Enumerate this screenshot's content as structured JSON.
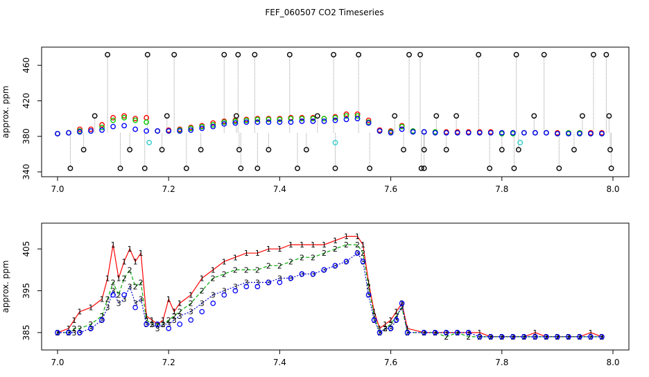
{
  "title": "FEF_060507  CO2 Timeseries",
  "chart_data": [
    {
      "type": "scatter",
      "ylabel": "approx. ppm",
      "xlim": [
        7.0,
        8.0
      ],
      "ylim": [
        340,
        475
      ],
      "xticks": [
        7.0,
        7.2,
        7.4,
        7.6,
        7.8,
        8.0
      ],
      "xtick_labels": [
        "7.0",
        "7.2",
        "7.4",
        "7.6",
        "7.8",
        "8.0"
      ],
      "yticks": [
        340,
        380,
        420,
        460
      ],
      "ytick_labels": [
        "340",
        "380",
        "420",
        "460"
      ],
      "grid": false,
      "series": [
        {
          "color": "#ff0000",
          "marker": "circle",
          "x": [
            7.0,
            7.02,
            7.04,
            7.06,
            7.08,
            7.1,
            7.12,
            7.14,
            7.16,
            7.18,
            7.2,
            7.22,
            7.24,
            7.26,
            7.28,
            7.3,
            7.32,
            7.34,
            7.36,
            7.38,
            7.4,
            7.42,
            7.44,
            7.46,
            7.48,
            7.5,
            7.52,
            7.54,
            7.56,
            7.58,
            7.6,
            7.62,
            7.64,
            7.66,
            7.68,
            7.7,
            7.72,
            7.74,
            7.76,
            7.78,
            7.8,
            7.82,
            7.84,
            7.86,
            7.88,
            7.9,
            7.92,
            7.94,
            7.96,
            7.98
          ],
          "y": [
            383,
            384,
            388,
            388,
            393,
            401,
            403,
            400,
            401,
            386,
            387,
            388,
            390,
            392,
            395,
            397,
            398,
            399,
            400,
            400,
            400,
            401,
            401,
            401,
            400,
            402,
            405,
            405,
            398,
            387,
            386,
            392,
            386,
            385,
            385,
            385,
            385,
            385,
            385,
            385,
            384,
            384,
            384,
            384,
            384,
            384,
            384,
            384,
            384,
            384
          ]
        },
        {
          "color": "#00cc00",
          "marker": "circle",
          "x": [
            7.0,
            7.02,
            7.04,
            7.06,
            7.08,
            7.1,
            7.12,
            7.14,
            7.16,
            7.18,
            7.2,
            7.22,
            7.24,
            7.26,
            7.28,
            7.3,
            7.32,
            7.34,
            7.36,
            7.38,
            7.4,
            7.42,
            7.44,
            7.46,
            7.48,
            7.5,
            7.52,
            7.54,
            7.56,
            7.58,
            7.6,
            7.62,
            7.64,
            7.66,
            7.68,
            7.7,
            7.72,
            7.74,
            7.76,
            7.78,
            7.8,
            7.82,
            7.84,
            7.86,
            7.88,
            7.9,
            7.92,
            7.94,
            7.96,
            7.98
          ],
          "y": [
            383,
            384,
            386,
            386,
            390,
            398,
            401,
            398,
            396,
            386,
            386,
            387,
            389,
            391,
            393,
            396,
            397,
            398,
            399,
            399,
            399,
            400,
            400,
            400,
            400,
            401,
            403,
            403,
            396,
            386,
            385,
            391,
            386,
            385,
            385,
            384,
            384,
            384,
            384,
            384,
            383,
            383,
            384,
            384,
            384,
            383,
            384,
            384,
            383,
            383
          ]
        },
        {
          "color": "#0000ff",
          "marker": "circle",
          "x": [
            7.0,
            7.02,
            7.04,
            7.06,
            7.08,
            7.1,
            7.12,
            7.14,
            7.16,
            7.18,
            7.2,
            7.22,
            7.24,
            7.26,
            7.28,
            7.3,
            7.32,
            7.34,
            7.36,
            7.38,
            7.4,
            7.42,
            7.44,
            7.46,
            7.48,
            7.5,
            7.52,
            7.54,
            7.56,
            7.58,
            7.6,
            7.62,
            7.64,
            7.66,
            7.68,
            7.7,
            7.72,
            7.74,
            7.76,
            7.78,
            7.8,
            7.82,
            7.84,
            7.86,
            7.88,
            7.9,
            7.92,
            7.94,
            7.96,
            7.98
          ],
          "y": [
            383,
            384,
            385,
            386,
            387,
            391,
            392,
            388,
            386,
            386,
            386,
            386,
            387,
            389,
            391,
            394,
            395,
            396,
            396,
            396,
            396,
            396,
            397,
            397,
            397,
            398,
            399,
            400,
            395,
            386,
            384,
            388,
            385,
            385,
            384,
            384,
            384,
            384,
            384,
            384,
            384,
            384,
            384,
            384,
            384,
            383,
            383,
            383,
            383,
            383
          ]
        },
        {
          "color": "#000000",
          "marker": "circle",
          "x": [
            7.023,
            7.047,
            7.067,
            7.09,
            7.113,
            7.13,
            7.157,
            7.162,
            7.188,
            7.197,
            7.21,
            7.232,
            7.258,
            7.3,
            7.322,
            7.325,
            7.327,
            7.33,
            7.355,
            7.36,
            7.38,
            7.418,
            7.432,
            7.448,
            7.468,
            7.497,
            7.5,
            7.542,
            7.562,
            7.607,
            7.623,
            7.633,
            7.653,
            7.655,
            7.66,
            7.66,
            7.682,
            7.7,
            7.718,
            7.758,
            7.778,
            7.8,
            7.822,
            7.826,
            7.83,
            7.858,
            7.876,
            7.903,
            7.93,
            7.945,
            7.965,
            7.988,
            7.993,
            7.995,
            7.997
          ],
          "y": [
            344,
            365,
            403,
            472,
            344,
            365,
            344,
            472,
            365,
            403,
            472,
            344,
            365,
            472,
            403,
            472,
            365,
            344,
            472,
            344,
            365,
            472,
            344,
            365,
            403,
            472,
            344,
            472,
            344,
            403,
            365,
            472,
            472,
            344,
            365,
            344,
            403,
            365,
            403,
            472,
            344,
            365,
            344,
            472,
            365,
            403,
            472,
            344,
            365,
            403,
            472,
            472,
            403,
            365,
            344
          ]
        },
        {
          "color": "#33cccc",
          "marker": "circle",
          "x": [
            7.165,
            7.5,
            7.833
          ],
          "y": [
            373,
            373,
            373
          ]
        }
      ]
    },
    {
      "type": "line",
      "ylabel": "approx. ppm",
      "xlim": [
        7.0,
        8.0
      ],
      "ylim": [
        382,
        410
      ],
      "xticks": [
        7.0,
        7.2,
        7.4,
        7.6,
        7.8,
        8.0
      ],
      "xtick_labels": [
        "7.0",
        "7.2",
        "7.4",
        "7.6",
        "7.8",
        "8.0"
      ],
      "yticks": [
        385,
        395,
        405
      ],
      "ytick_labels": [
        "385",
        "395",
        "405"
      ],
      "grid": false,
      "series": [
        {
          "marker_text": "1",
          "color": "#ff0000",
          "x": [
            7.0,
            7.02,
            7.03,
            7.04,
            7.06,
            7.08,
            7.09,
            7.1,
            7.11,
            7.12,
            7.13,
            7.14,
            7.15,
            7.16,
            7.17,
            7.18,
            7.19,
            7.2,
            7.21,
            7.22,
            7.24,
            7.26,
            7.28,
            7.3,
            7.32,
            7.34,
            7.36,
            7.38,
            7.4,
            7.42,
            7.44,
            7.46,
            7.48,
            7.5,
            7.52,
            7.54,
            7.55,
            7.56,
            7.57,
            7.58,
            7.59,
            7.6,
            7.61,
            7.62,
            7.63,
            7.66,
            7.68,
            7.7,
            7.72,
            7.74,
            7.76,
            7.78,
            7.8,
            7.82,
            7.84,
            7.86,
            7.88,
            7.9,
            7.92,
            7.94,
            7.96,
            7.98
          ],
          "y": [
            385,
            386,
            388,
            390,
            391,
            393,
            398,
            406,
            398,
            402,
            405,
            402,
            404,
            389,
            388,
            387,
            388,
            393,
            390,
            392,
            394,
            398,
            400,
            402,
            403,
            404,
            404,
            405,
            405,
            406,
            406,
            406,
            406,
            407,
            408,
            408,
            406,
            397,
            390,
            386,
            387,
            388,
            390,
            392,
            386,
            385,
            385,
            385,
            385,
            385,
            385,
            384,
            384,
            384,
            384,
            385,
            384,
            384,
            384,
            384,
            385,
            384
          ]
        },
        {
          "marker_text": "2",
          "color": "#00aa00",
          "x": [
            7.0,
            7.02,
            7.03,
            7.04,
            7.06,
            7.08,
            7.09,
            7.1,
            7.11,
            7.12,
            7.13,
            7.14,
            7.15,
            7.16,
            7.17,
            7.18,
            7.19,
            7.2,
            7.21,
            7.22,
            7.24,
            7.26,
            7.28,
            7.3,
            7.32,
            7.34,
            7.36,
            7.38,
            7.4,
            7.42,
            7.44,
            7.46,
            7.48,
            7.5,
            7.52,
            7.54,
            7.55,
            7.56,
            7.57,
            7.58,
            7.59,
            7.6,
            7.61,
            7.62,
            7.63,
            7.66,
            7.68,
            7.7,
            7.72,
            7.74,
            7.76,
            7.78,
            7.8,
            7.82,
            7.84,
            7.86,
            7.88,
            7.9,
            7.92,
            7.94,
            7.96,
            7.98
          ],
          "y": [
            385,
            385,
            386,
            386,
            387,
            389,
            393,
            397,
            394,
            398,
            400,
            396,
            397,
            388,
            387,
            387,
            387,
            388,
            389,
            390,
            392,
            395,
            398,
            399,
            400,
            400,
            400,
            401,
            401,
            402,
            403,
            403,
            404,
            405,
            406,
            406,
            404,
            396,
            389,
            385,
            386,
            387,
            389,
            391,
            385,
            385,
            385,
            384,
            385,
            384,
            384,
            384,
            384,
            384,
            384,
            384,
            384,
            384,
            384,
            384,
            384,
            384
          ]
        },
        {
          "marker_text": "3",
          "color": "#0000cc",
          "x": [
            7.0,
            7.02,
            7.03,
            7.04,
            7.06,
            7.08,
            7.09,
            7.1,
            7.11,
            7.12,
            7.13,
            7.14,
            7.15,
            7.16,
            7.17,
            7.18,
            7.19,
            7.2,
            7.21,
            7.22,
            7.24,
            7.26,
            7.28,
            7.3,
            7.32,
            7.34,
            7.36,
            7.38,
            7.4,
            7.42,
            7.44,
            7.46,
            7.48,
            7.5,
            7.52,
            7.54,
            7.55,
            7.56,
            7.57,
            7.58,
            7.59,
            7.6,
            7.61,
            7.62,
            7.63,
            7.66,
            7.68,
            7.7,
            7.72,
            7.74,
            7.76,
            7.78,
            7.8,
            7.82,
            7.84,
            7.86,
            7.88,
            7.9,
            7.92,
            7.94,
            7.96,
            7.98
          ],
          "y": [
            385,
            385,
            385,
            385,
            386,
            388,
            391,
            395,
            392,
            393,
            396,
            392,
            393,
            387,
            387,
            386,
            387,
            387,
            388,
            389,
            390,
            392,
            394,
            395,
            396,
            397,
            397,
            397,
            398,
            398,
            399,
            399,
            400,
            401,
            402,
            404,
            402,
            394,
            388,
            385,
            386,
            386,
            388,
            392,
            385,
            385,
            385,
            385,
            385,
            385,
            384,
            384,
            384,
            384,
            384,
            384,
            384,
            384,
            384,
            384,
            384,
            384
          ]
        },
        {
          "marker_text": "0",
          "color": "#0000ff",
          "x": [
            7.0,
            7.02,
            7.04,
            7.06,
            7.08,
            7.1,
            7.12,
            7.14,
            7.16,
            7.18,
            7.2,
            7.22,
            7.24,
            7.26,
            7.28,
            7.3,
            7.32,
            7.34,
            7.36,
            7.38,
            7.4,
            7.42,
            7.44,
            7.46,
            7.48,
            7.5,
            7.52,
            7.54,
            7.55,
            7.56,
            7.57,
            7.58,
            7.6,
            7.61,
            7.62,
            7.63,
            7.66,
            7.68,
            7.7,
            7.72,
            7.74,
            7.76,
            7.78,
            7.8,
            7.82,
            7.84,
            7.86,
            7.88,
            7.9,
            7.92,
            7.94,
            7.96,
            7.98
          ],
          "y": [
            385,
            385,
            385,
            386,
            388,
            394,
            394,
            391,
            387,
            387,
            386,
            387,
            388,
            390,
            392,
            394,
            395,
            396,
            396,
            397,
            397,
            398,
            399,
            399,
            400,
            401,
            402,
            404,
            402,
            394,
            388,
            385,
            386,
            388,
            392,
            385,
            385,
            385,
            385,
            385,
            385,
            384,
            384,
            384,
            384,
            384,
            384,
            384,
            384,
            384,
            384,
            384,
            384
          ]
        }
      ]
    }
  ]
}
